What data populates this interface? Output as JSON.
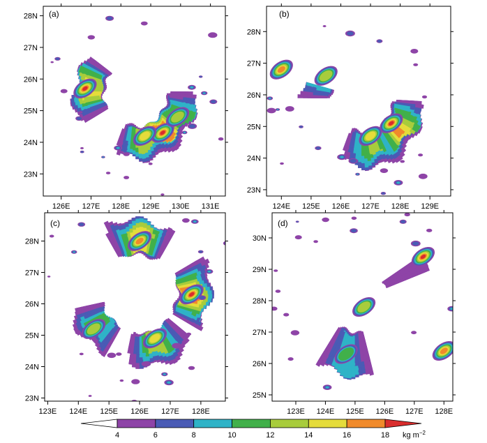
{
  "chart_data": [
    {
      "type": "heatmap",
      "panel": "(a)",
      "xticks": [
        "126E",
        "127E",
        "128E",
        "129E",
        "130E",
        "131E"
      ],
      "yticks": [
        "23N",
        "24N",
        "25N",
        "26N",
        "27N",
        "28N"
      ],
      "xlim": [
        125.4,
        131.5
      ],
      "ylim": [
        22.3,
        28.3
      ],
      "ring": {
        "center": [
          128.5,
          25.6
        ],
        "inner_radius_deg": 1.05,
        "outer_radius_deg": 2.0,
        "gap_start_deg": 35,
        "gap_end_deg": 95
      },
      "maxima": [
        [
          126.8,
          25.7,
          18
        ],
        [
          129.4,
          24.3,
          18
        ],
        [
          128.8,
          24.2,
          14
        ],
        [
          129.9,
          24.8,
          12
        ]
      ]
    },
    {
      "type": "heatmap",
      "panel": "(b)",
      "xticks": [
        "124E",
        "125E",
        "126E",
        "127E",
        "128E",
        "129E"
      ],
      "yticks": [
        "23N",
        "24N",
        "25N",
        "26N",
        "27N",
        "28N"
      ],
      "xlim": [
        123.5,
        129.7
      ],
      "ylim": [
        22.8,
        28.8
      ],
      "ring": {
        "center": [
          126.7,
          25.9
        ],
        "inner_radius_deg": 1.05,
        "outer_radius_deg": 2.1,
        "gap_start_deg": 110,
        "gap_end_deg": 165
      },
      "maxima": [
        [
          127.7,
          25.1,
          18
        ],
        [
          124.0,
          26.8,
          16
        ],
        [
          127.0,
          24.7,
          14
        ],
        [
          125.5,
          26.6,
          12
        ]
      ]
    },
    {
      "type": "heatmap",
      "panel": "(c)",
      "xticks": [
        "123E",
        "124E",
        "125E",
        "126E",
        "127E",
        "128E"
      ],
      "yticks": [
        "23N",
        "24N",
        "25N",
        "26N",
        "27N",
        "28N"
      ],
      "xlim": [
        122.9,
        128.8
      ],
      "ylim": [
        22.9,
        28.9
      ],
      "ring": {
        "center": [
          126.0,
          26.3
        ],
        "inner_radius_deg": 1.2,
        "outer_radius_deg": 2.2,
        "gap_start_deg": 125,
        "gap_end_deg": 170
      },
      "maxima": [
        [
          126.0,
          28.0,
          16
        ],
        [
          127.7,
          26.3,
          18
        ],
        [
          126.5,
          24.9,
          14
        ],
        [
          124.5,
          25.2,
          12
        ]
      ]
    },
    {
      "type": "heatmap",
      "panel": "(d)",
      "xticks": [
        "123E",
        "124E",
        "125E",
        "126E",
        "127E",
        "128E"
      ],
      "yticks": [
        "25N",
        "26N",
        "27N",
        "28N",
        "29N",
        "30N"
      ],
      "xlim": [
        122.2,
        128.3
      ],
      "ylim": [
        24.8,
        30.8
      ],
      "ring": {
        "center": [
          125.0,
          28.0
        ],
        "inner_radius_deg": 1.0,
        "outer_radius_deg": 2.4,
        "gap_start_deg": 150,
        "gap_end_deg": 215
      },
      "maxima": [
        [
          127.3,
          29.4,
          18
        ],
        [
          128.0,
          26.4,
          16
        ],
        [
          125.3,
          27.8,
          12
        ],
        [
          124.7,
          26.3,
          10
        ]
      ]
    }
  ],
  "colorbar": {
    "levels": [
      "4",
      "6",
      "8",
      "10",
      "12",
      "14",
      "16",
      "18"
    ],
    "units_text": "kg m",
    "units_superscript": "−2",
    "colors": [
      "#ffffff",
      "#8e44a7",
      "#4a5bb5",
      "#2fb3c7",
      "#41b04a",
      "#a8cc3c",
      "#e5dc3b",
      "#f08a2b",
      "#d92d2d"
    ]
  },
  "colors": {
    "frame": "#000000",
    "background": "#ffffff"
  }
}
